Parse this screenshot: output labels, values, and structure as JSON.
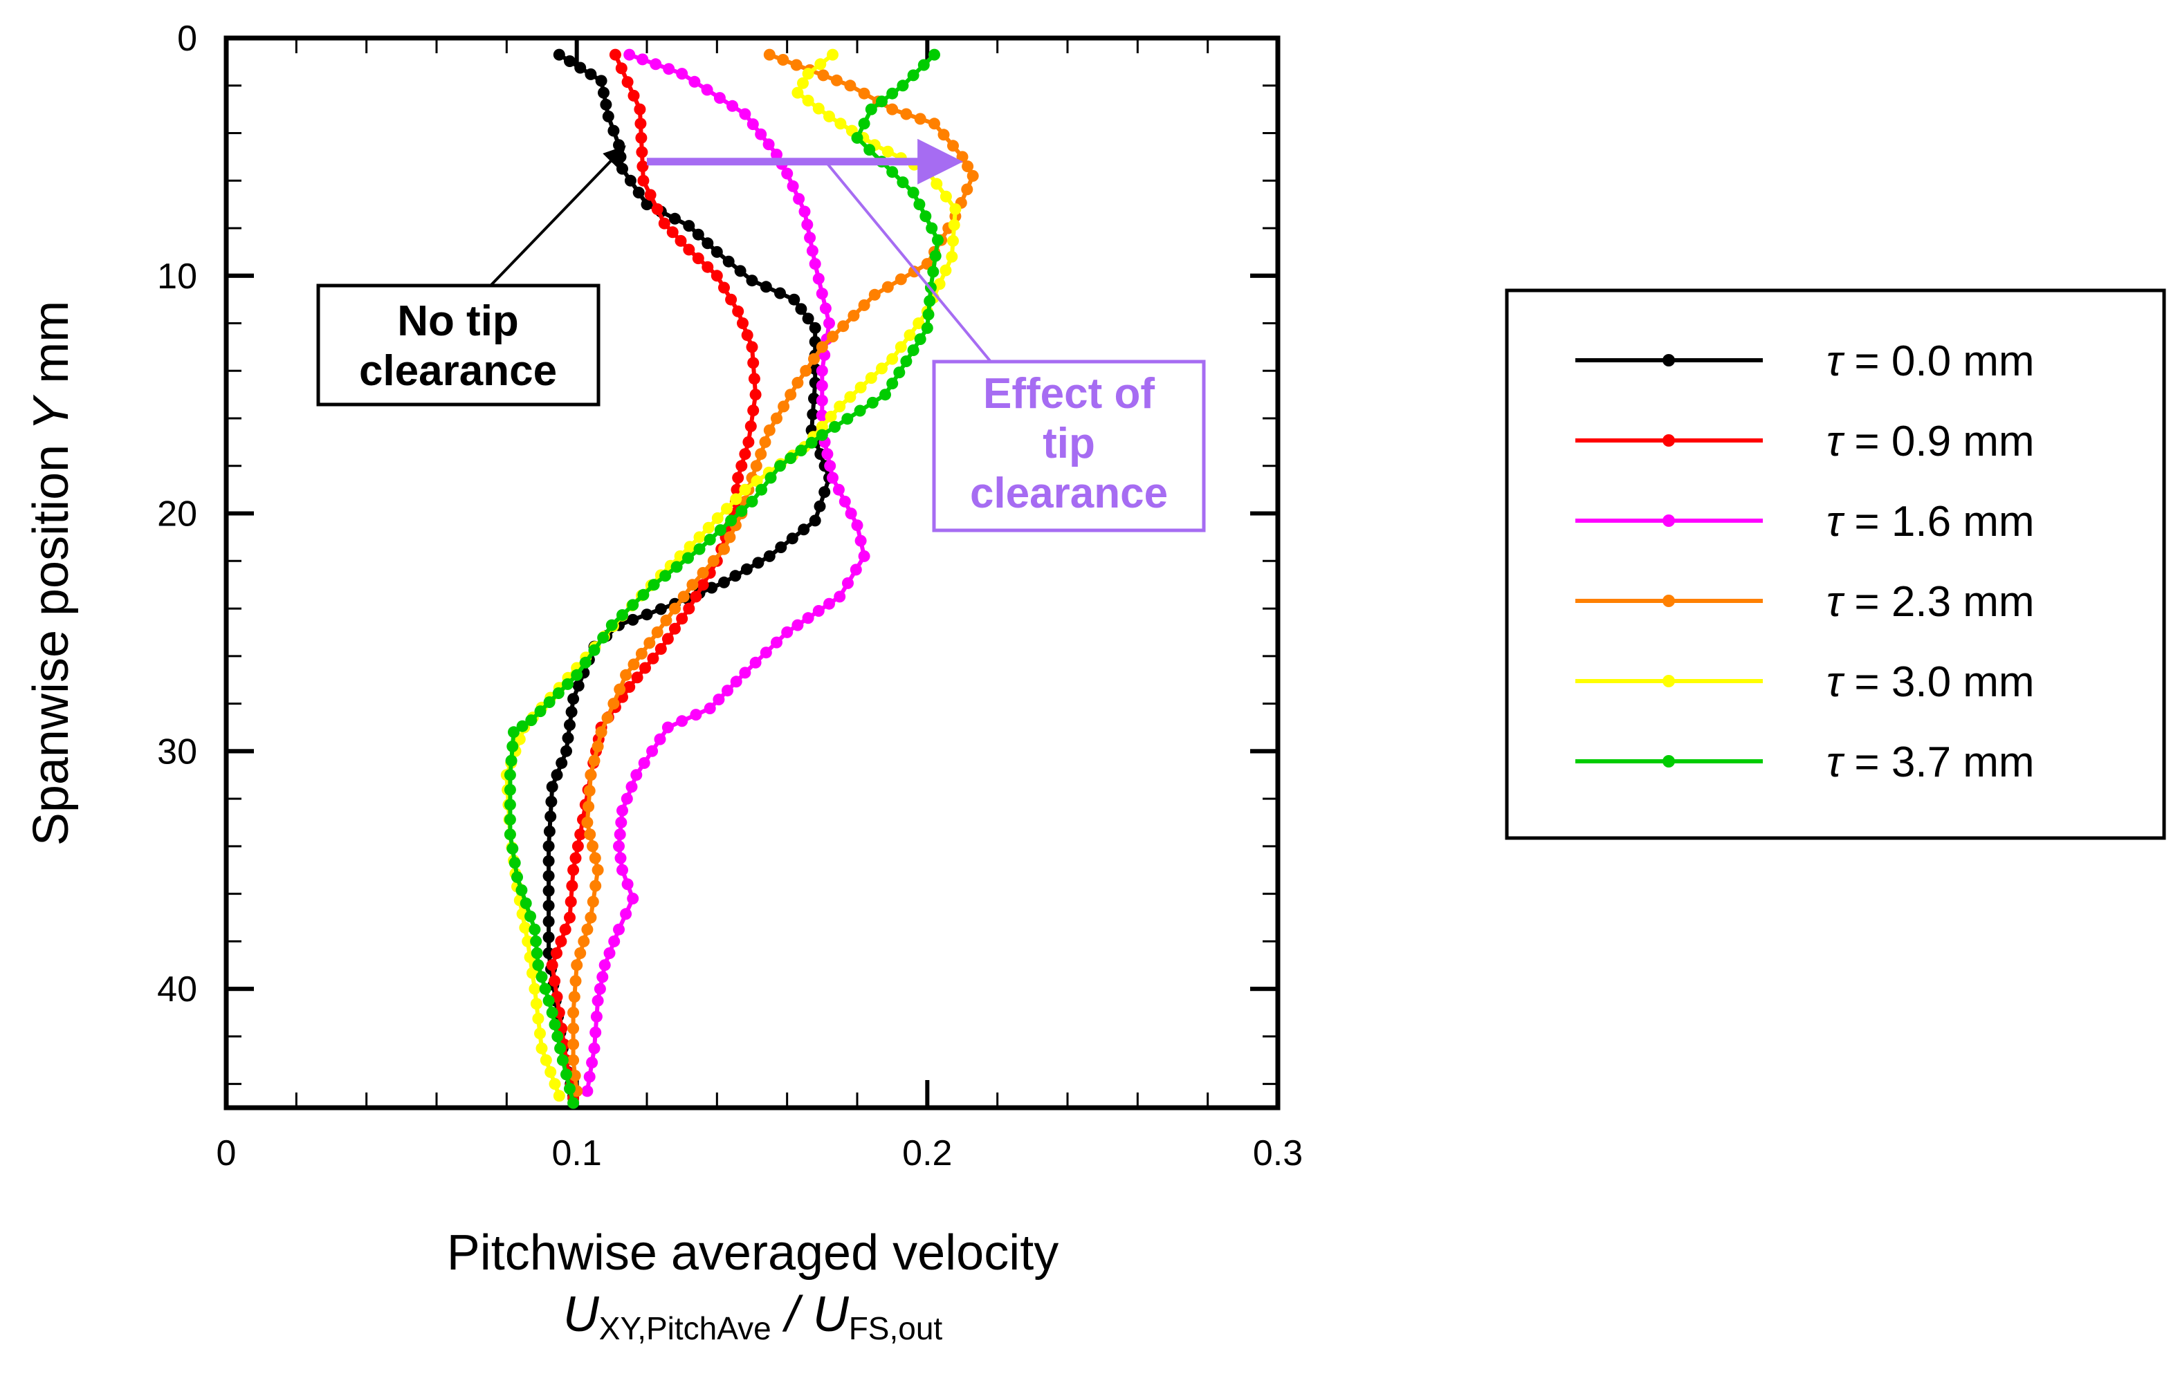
{
  "chart_data": {
    "type": "line",
    "xlabel": "Pitchwise averaged velocity",
    "xlabel_formula": {
      "numerator": "U",
      "numerator_sub": "XY,PitchAve",
      "separator": " / ",
      "denominator": "U",
      "denominator_sub": "FS,out"
    },
    "ylabel": {
      "prefix": "Spanwise position ",
      "symbol": "Y",
      "suffix": " mm"
    },
    "xlim": [
      0,
      0.3
    ],
    "ylim": [
      0,
      45
    ],
    "y_inverted": true,
    "xticks": [
      0,
      0.1,
      0.2,
      0.3
    ],
    "xtick_labels": [
      "0",
      "0.1",
      "0.2",
      "0.3"
    ],
    "yticks": [
      0,
      10,
      20,
      30,
      40
    ],
    "ytick_labels": [
      "0",
      "10",
      "20",
      "30",
      "40"
    ],
    "legend_position": "right",
    "series": [
      {
        "name": "τ = 0.0 mm",
        "symbol": "τ",
        "label": " = 0.0 mm",
        "color": "#000000",
        "points": [
          [
            0.095,
            0.7
          ],
          [
            0.107,
            1.8
          ],
          [
            0.109,
            3.3
          ],
          [
            0.112,
            4.5
          ],
          [
            0.113,
            5.5
          ],
          [
            0.12,
            7.0
          ],
          [
            0.132,
            7.9
          ],
          [
            0.14,
            9.0
          ],
          [
            0.15,
            10.2
          ],
          [
            0.162,
            11
          ],
          [
            0.168,
            12.2
          ],
          [
            0.168,
            14.5
          ],
          [
            0.167,
            16.5
          ],
          [
            0.172,
            18.5
          ],
          [
            0.168,
            20.3
          ],
          [
            0.155,
            21.8
          ],
          [
            0.142,
            22.9
          ],
          [
            0.128,
            23.8
          ],
          [
            0.112,
            24.7
          ],
          [
            0.105,
            25.6
          ],
          [
            0.099,
            27.8
          ],
          [
            0.097,
            30
          ],
          [
            0.093,
            31.5
          ],
          [
            0.092,
            34
          ],
          [
            0.092,
            36.5
          ],
          [
            0.092,
            38.5
          ],
          [
            0.094,
            40.5
          ],
          [
            0.096,
            42.5
          ],
          [
            0.099,
            44.5
          ]
        ]
      },
      {
        "name": "τ = 0.9 mm",
        "symbol": "τ",
        "label": " = 0.9 mm",
        "color": "#ff0000",
        "points": [
          [
            0.111,
            0.7
          ],
          [
            0.118,
            3
          ],
          [
            0.119,
            6
          ],
          [
            0.125,
            7.8
          ],
          [
            0.132,
            8.9
          ],
          [
            0.14,
            10
          ],
          [
            0.146,
            11.5
          ],
          [
            0.15,
            13
          ],
          [
            0.151,
            15
          ],
          [
            0.149,
            17
          ],
          [
            0.146,
            18.5
          ],
          [
            0.145,
            20
          ],
          [
            0.14,
            22
          ],
          [
            0.132,
            24
          ],
          [
            0.124,
            25.7
          ],
          [
            0.115,
            27.3
          ],
          [
            0.107,
            29
          ],
          [
            0.104,
            31
          ],
          [
            0.101,
            33.5
          ],
          [
            0.099,
            35
          ],
          [
            0.098,
            37
          ],
          [
            0.093,
            39
          ],
          [
            0.095,
            41
          ],
          [
            0.097,
            43
          ],
          [
            0.099,
            44.6
          ]
        ]
      },
      {
        "name": "τ = 1.6 mm",
        "symbol": "τ",
        "label": " = 1.6 mm",
        "color": "#ff00ff",
        "points": [
          [
            0.115,
            0.7
          ],
          [
            0.13,
            1.5
          ],
          [
            0.148,
            3.2
          ],
          [
            0.157,
            4.9
          ],
          [
            0.16,
            5.7
          ],
          [
            0.165,
            7.3
          ],
          [
            0.168,
            9.5
          ],
          [
            0.172,
            12
          ],
          [
            0.17,
            14
          ],
          [
            0.17,
            16.5
          ],
          [
            0.173,
            18.5
          ],
          [
            0.18,
            20.5
          ],
          [
            0.182,
            21.8
          ],
          [
            0.175,
            23.5
          ],
          [
            0.16,
            25
          ],
          [
            0.148,
            26.7
          ],
          [
            0.138,
            28.2
          ],
          [
            0.126,
            29
          ],
          [
            0.117,
            31
          ],
          [
            0.113,
            32.5
          ],
          [
            0.112,
            34
          ],
          [
            0.113,
            35
          ],
          [
            0.116,
            36.2
          ],
          [
            0.112,
            37.5
          ],
          [
            0.108,
            39
          ],
          [
            0.106,
            40.5
          ],
          [
            0.105,
            42.5
          ],
          [
            0.103,
            44.3
          ]
        ]
      },
      {
        "name": "τ = 2.3 mm",
        "symbol": "τ",
        "label": " = 2.3 mm",
        "color": "#ff8000",
        "points": [
          [
            0.155,
            0.7
          ],
          [
            0.178,
            2
          ],
          [
            0.19,
            3
          ],
          [
            0.202,
            3.6
          ],
          [
            0.21,
            5
          ],
          [
            0.213,
            5.8
          ],
          [
            0.208,
            7.5
          ],
          [
            0.2,
            9.5
          ],
          [
            0.185,
            10.8
          ],
          [
            0.17,
            13
          ],
          [
            0.163,
            14.5
          ],
          [
            0.155,
            16.5
          ],
          [
            0.15,
            18.5
          ],
          [
            0.147,
            20
          ],
          [
            0.142,
            21.5
          ],
          [
            0.133,
            23
          ],
          [
            0.123,
            25
          ],
          [
            0.114,
            26.8
          ],
          [
            0.107,
            29.2
          ],
          [
            0.104,
            31
          ],
          [
            0.103,
            33
          ],
          [
            0.106,
            35
          ],
          [
            0.104,
            37
          ],
          [
            0.1,
            39
          ],
          [
            0.099,
            41
          ],
          [
            0.099,
            43
          ],
          [
            0.1,
            44.3
          ]
        ]
      },
      {
        "name": "τ = 3.0 mm",
        "symbol": "τ",
        "label": " = 3.0 mm",
        "color": "#ffff00",
        "points": [
          [
            0.173,
            0.7
          ],
          [
            0.166,
            1.5
          ],
          [
            0.163,
            2.3
          ],
          [
            0.172,
            3.3
          ],
          [
            0.185,
            4.5
          ],
          [
            0.2,
            5.6
          ],
          [
            0.208,
            7.2
          ],
          [
            0.207,
            9.2
          ],
          [
            0.2,
            11.5
          ],
          [
            0.19,
            13.5
          ],
          [
            0.175,
            15.5
          ],
          [
            0.165,
            17.2
          ],
          [
            0.148,
            19
          ],
          [
            0.135,
            21
          ],
          [
            0.124,
            22.6
          ],
          [
            0.113,
            24.3
          ],
          [
            0.1,
            26.5
          ],
          [
            0.085,
            29
          ],
          [
            0.08,
            31
          ],
          [
            0.081,
            33.5
          ],
          [
            0.083,
            35.7
          ],
          [
            0.086,
            38
          ],
          [
            0.088,
            40
          ],
          [
            0.09,
            42.5
          ],
          [
            0.095,
            44.5
          ]
        ]
      },
      {
        "name": "τ = 3.7 mm",
        "symbol": "τ",
        "label": " = 3.7 mm",
        "color": "#00cc00",
        "points": [
          [
            0.202,
            0.7
          ],
          [
            0.193,
            2
          ],
          [
            0.184,
            3
          ],
          [
            0.18,
            4.2
          ],
          [
            0.187,
            5.2
          ],
          [
            0.196,
            6.5
          ],
          [
            0.203,
            8.5
          ],
          [
            0.201,
            10.5
          ],
          [
            0.2,
            12.2
          ],
          [
            0.188,
            15
          ],
          [
            0.17,
            16.7
          ],
          [
            0.158,
            18
          ],
          [
            0.15,
            19.5
          ],
          [
            0.135,
            21.5
          ],
          [
            0.122,
            23
          ],
          [
            0.11,
            24.7
          ],
          [
            0.1,
            26.8
          ],
          [
            0.087,
            28.7
          ],
          [
            0.082,
            29.2
          ],
          [
            0.081,
            31
          ],
          [
            0.081,
            33.5
          ],
          [
            0.083,
            35.3
          ],
          [
            0.088,
            37.5
          ],
          [
            0.089,
            39
          ],
          [
            0.093,
            41
          ],
          [
            0.096,
            43
          ],
          [
            0.099,
            44.8
          ]
        ]
      }
    ],
    "annotations": [
      {
        "id": "no-tip",
        "lines": [
          "No tip",
          "clearance"
        ],
        "color": "#000000",
        "points_to": [
          0.113,
          4.6
        ]
      },
      {
        "id": "effect",
        "lines": [
          "Effect of",
          "tip",
          "clearance"
        ],
        "color": "#a66cf2",
        "arrow_from": [
          0.12,
          5.2
        ],
        "arrow_to": [
          0.212,
          5.2
        ],
        "leader_from": [
          0.171,
          5.2
        ]
      }
    ]
  }
}
